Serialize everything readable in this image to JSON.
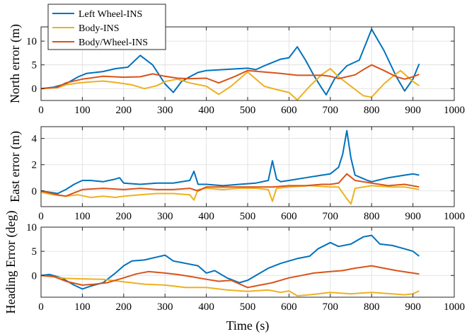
{
  "chart_data": {
    "type": "line",
    "xlabel": "Time (s)",
    "series_styles": [
      {
        "name": "Left Wheel-INS",
        "color": "#0072BD"
      },
      {
        "name": "Body-INS",
        "color": "#EDB120"
      },
      {
        "name": "Body/Wheel-INS",
        "color": "#D95319"
      }
    ],
    "legend": {
      "placement": "top-left",
      "entries": [
        "Left Wheel-INS",
        "Body-INS",
        "Body/Wheel-INS"
      ]
    },
    "grid": true,
    "panels": [
      {
        "ylabel": "North error (m)",
        "xlim": [
          0,
          1000
        ],
        "ylim": [
          -2.5,
          13
        ],
        "xticks": [
          0,
          100,
          200,
          300,
          400,
          500,
          600,
          700,
          800,
          900,
          1000
        ],
        "yticks": [
          0,
          5,
          10
        ],
        "series": [
          {
            "name": "Left Wheel-INS",
            "x": [
              0,
              30,
              60,
              90,
              110,
              150,
              180,
              210,
              240,
              270,
              300,
              320,
              340,
              360,
              380,
              400,
              440,
              480,
              500,
              520,
              540,
              560,
              580,
              600,
              620,
              640,
              660,
              680,
              690,
              710,
              740,
              770,
              800,
              830,
              860,
              880,
              900,
              915
            ],
            "y": [
              0,
              0.3,
              1.0,
              2.5,
              3.2,
              3.6,
              4.2,
              4.5,
              7.0,
              5.0,
              1.0,
              -0.8,
              1.5,
              2.5,
              3.4,
              3.8,
              4.0,
              4.2,
              4.3,
              4.0,
              4.8,
              5.5,
              6.2,
              6.5,
              8.8,
              6.0,
              2.8,
              0,
              -1.3,
              2.0,
              4.8,
              6.0,
              12.5,
              8.0,
              2.5,
              -0.5,
              2.0,
              5.2
            ]
          },
          {
            "name": "Body-INS",
            "x": [
              0,
              40,
              60,
              90,
              120,
              150,
              180,
              220,
              250,
              280,
              300,
              330,
              360,
              400,
              430,
              460,
              480,
              500,
              520,
              540,
              570,
              600,
              620,
              650,
              680,
              700,
              720,
              750,
              780,
              800,
              830,
              850,
              870,
              900,
              915
            ],
            "y": [
              0,
              0.2,
              0.8,
              1.2,
              1.4,
              1.6,
              1.3,
              0.8,
              0,
              0.6,
              1.5,
              2.0,
              1.2,
              0.5,
              -1.2,
              0.5,
              2.0,
              3.5,
              2.0,
              0.5,
              -0.2,
              -0.8,
              -2.4,
              0.5,
              3.0,
              4.2,
              2.5,
              0.5,
              -1.5,
              -1.8,
              1.0,
              2.5,
              3.8,
              1.5,
              0.6
            ]
          },
          {
            "name": "Body/Wheel-INS",
            "x": [
              0,
              40,
              60,
              100,
              150,
              200,
              240,
              270,
              300,
              330,
              360,
              400,
              430,
              470,
              500,
              540,
              580,
              620,
              650,
              680,
              700,
              720,
              760,
              780,
              800,
              830,
              860,
              880,
              900,
              915
            ],
            "y": [
              0,
              0.3,
              1.2,
              2.0,
              2.6,
              2.4,
              2.5,
              3.1,
              2.6,
              2.2,
              2.1,
              2.2,
              1.2,
              2.6,
              3.8,
              3.5,
              3.2,
              2.8,
              2.8,
              2.8,
              2.6,
              2.1,
              2.9,
              4.0,
              5.0,
              3.8,
              2.5,
              2.0,
              2.5,
              3.0
            ]
          }
        ]
      },
      {
        "ylabel": "East error (m)",
        "xlim": [
          0,
          1000
        ],
        "ylim": [
          -1.2,
          4.9
        ],
        "xticks": [
          0,
          100,
          200,
          300,
          400,
          500,
          600,
          700,
          800,
          900,
          1000
        ],
        "yticks": [
          0,
          2,
          4
        ],
        "series": [
          {
            "name": "Left Wheel-INS",
            "x": [
              0,
              20,
              40,
              60,
              80,
              100,
              120,
              150,
              180,
              190,
              200,
              240,
              280,
              320,
              360,
              370,
              380,
              400,
              440,
              480,
              520,
              550,
              560,
              570,
              580,
              600,
              640,
              680,
              700,
              720,
              730,
              740,
              750,
              760,
              790,
              800,
              840,
              880,
              900,
              915
            ],
            "y": [
              0,
              -0.1,
              -0.2,
              0.1,
              0.5,
              0.8,
              0.8,
              0.7,
              0.9,
              1.0,
              0.6,
              0.5,
              0.6,
              0.6,
              0.8,
              1.5,
              0.5,
              0.5,
              0.4,
              0.5,
              0.6,
              0.8,
              2.3,
              0.9,
              0.7,
              0.8,
              1.0,
              1.2,
              1.3,
              1.8,
              2.8,
              4.6,
              2.5,
              1.2,
              0.8,
              0.7,
              1.0,
              1.2,
              1.3,
              1.2
            ]
          },
          {
            "name": "Body-INS",
            "x": [
              0,
              30,
              60,
              90,
              120,
              150,
              180,
              200,
              240,
              280,
              320,
              360,
              370,
              380,
              400,
              440,
              480,
              520,
              550,
              560,
              570,
              600,
              650,
              700,
              720,
              740,
              750,
              760,
              800,
              850,
              880,
              915
            ],
            "y": [
              -0.1,
              -0.3,
              -0.4,
              -0.3,
              -0.5,
              -0.4,
              -0.5,
              -0.4,
              -0.3,
              -0.2,
              -0.2,
              -0.3,
              -0.7,
              0.1,
              0.2,
              0.1,
              0.2,
              0.2,
              0.1,
              -0.8,
              0.2,
              0.3,
              0.4,
              0.3,
              0.3,
              -0.6,
              -1.0,
              0.2,
              0.4,
              0.3,
              0.3,
              0.1
            ]
          },
          {
            "name": "Body/Wheel-INS",
            "x": [
              0,
              40,
              60,
              100,
              150,
              200,
              240,
              280,
              320,
              360,
              380,
              400,
              440,
              480,
              520,
              560,
              600,
              640,
              680,
              700,
              720,
              740,
              760,
              800,
              840,
              880,
              915
            ],
            "y": [
              0,
              -0.3,
              -0.4,
              0.1,
              0.2,
              0.1,
              0.2,
              0.1,
              0.1,
              0.2,
              0.0,
              0.3,
              0.3,
              0.3,
              0.3,
              0.3,
              0.4,
              0.4,
              0.5,
              0.5,
              0.6,
              1.3,
              0.8,
              0.6,
              0.4,
              0.5,
              0.3
            ]
          }
        ]
      },
      {
        "ylabel": "Heading Error (deg)",
        "xlim": [
          0,
          1000
        ],
        "ylim": [
          -4.5,
          10
        ],
        "xticks": [
          0,
          100,
          200,
          300,
          400,
          500,
          600,
          700,
          800,
          900,
          1000
        ],
        "yticks": [
          0,
          5,
          10
        ],
        "series": [
          {
            "name": "Left Wheel-INS",
            "x": [
              0,
              20,
              50,
              80,
              100,
              120,
              150,
              180,
              200,
              220,
              250,
              280,
              300,
              320,
              350,
              380,
              400,
              420,
              450,
              480,
              500,
              520,
              550,
              580,
              600,
              620,
              650,
              670,
              700,
              720,
              750,
              780,
              800,
              820,
              850,
              880,
              900,
              915
            ],
            "y": [
              0,
              0.2,
              -0.5,
              -2.0,
              -2.8,
              -2.2,
              -1.5,
              0.5,
              2.0,
              3.0,
              3.2,
              3.8,
              4.2,
              3.0,
              2.5,
              2.0,
              0.5,
              1.0,
              -0.5,
              -1.5,
              -1.0,
              0,
              1.5,
              2.5,
              3.0,
              3.5,
              4.0,
              5.5,
              6.8,
              6.0,
              6.5,
              8.0,
              8.3,
              6.5,
              6.2,
              5.5,
              5.0,
              4.0
            ]
          },
          {
            "name": "Body-INS",
            "x": [
              0,
              30,
              60,
              100,
              150,
              200,
              250,
              300,
              350,
              400,
              450,
              500,
              550,
              580,
              600,
              620,
              650,
              700,
              750,
              800,
              850,
              880,
              900,
              915
            ],
            "y": [
              0,
              -0.3,
              -0.6,
              -0.7,
              -0.8,
              -1.3,
              -1.8,
              -2.0,
              -2.5,
              -2.5,
              -3.0,
              -3.3,
              -3.0,
              -3.5,
              -3.2,
              -4.2,
              -4.0,
              -3.5,
              -3.8,
              -3.5,
              -3.8,
              -4.0,
              -3.8,
              -3.2
            ]
          },
          {
            "name": "Body/Wheel-INS",
            "x": [
              0,
              30,
              60,
              100,
              130,
              160,
              200,
              230,
              260,
              300,
              330,
              360,
              400,
              430,
              460,
              500,
              530,
              560,
              600,
              630,
              660,
              700,
              730,
              760,
              800,
              830,
              860,
              900,
              915
            ],
            "y": [
              0,
              -0.2,
              -1.2,
              -2.0,
              -1.8,
              -1.5,
              -0.5,
              0.3,
              0.8,
              0.5,
              0.2,
              -0.2,
              -0.8,
              -1.2,
              -1.0,
              -2.5,
              -2.0,
              -1.5,
              -0.5,
              0,
              0.5,
              0.8,
              1.0,
              1.5,
              2.0,
              1.5,
              1.0,
              0.5,
              0.3
            ]
          }
        ]
      }
    ]
  }
}
